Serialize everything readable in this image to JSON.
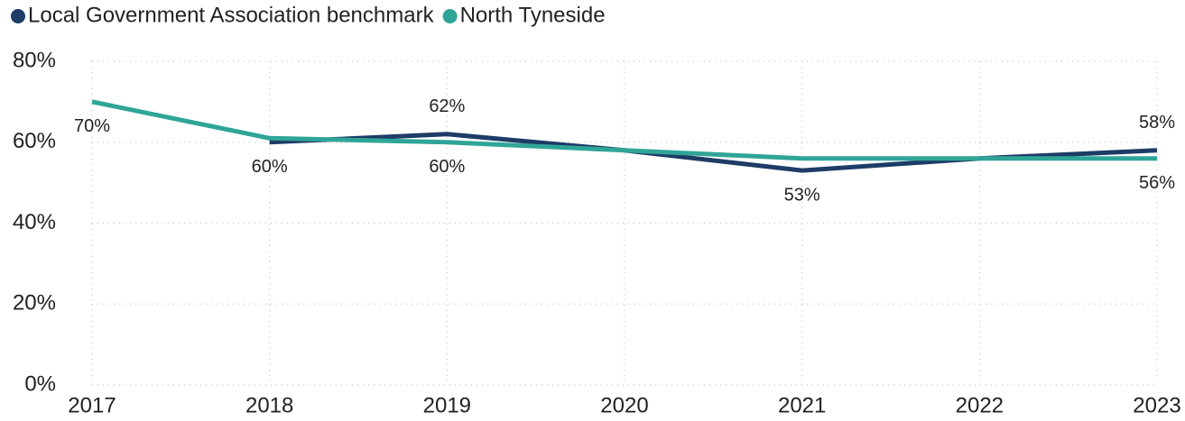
{
  "chart_data": {
    "type": "line",
    "categories": [
      "2017",
      "2018",
      "2019",
      "2020",
      "2021",
      "2022",
      "2023"
    ],
    "series": [
      {
        "name": "Local Government Association benchmark",
        "color": "#1d3c66",
        "values": [
          null,
          60,
          62,
          58,
          53,
          56,
          58
        ],
        "value_labels": [
          null,
          "60%",
          "62%",
          null,
          "53%",
          null,
          "58%"
        ]
      },
      {
        "name": "North Tyneside",
        "color": "#2fa598",
        "values": [
          70,
          61,
          60,
          58,
          56,
          56,
          56
        ],
        "value_labels": [
          "70%",
          null,
          "60%",
          null,
          null,
          null,
          "56%"
        ]
      }
    ],
    "ylim": [
      0,
      80
    ],
    "yticks": [
      {
        "value": 0,
        "label": "0%"
      },
      {
        "value": 20,
        "label": "20%"
      },
      {
        "value": 40,
        "label": "40%"
      },
      {
        "value": 60,
        "label": "60%"
      },
      {
        "value": 80,
        "label": "80%"
      }
    ],
    "grid": true,
    "legend": "top-left"
  }
}
